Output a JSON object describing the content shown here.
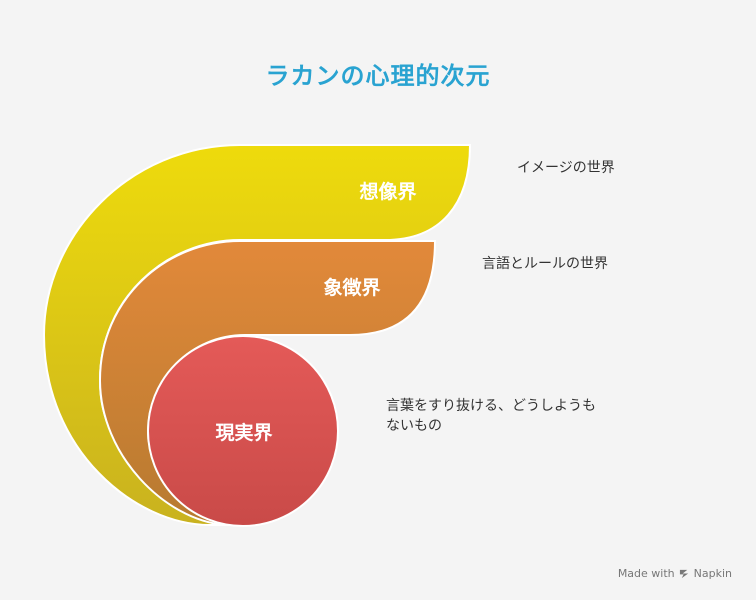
{
  "title": "ラカンの心理的次元",
  "layers": [
    {
      "label": "想像界",
      "description": "イメージの世界",
      "color": "#e6d10f"
    },
    {
      "label": "象徴界",
      "description": "言語とルールの世界",
      "color": "#d98535"
    },
    {
      "label": "現実界",
      "description": "言葉をすり抜ける、どうしようもないもの",
      "color": "#df5050"
    }
  ],
  "footer": {
    "made_with": "Made with",
    "brand": "Napkin",
    "icon": "napkin-logo-icon"
  }
}
